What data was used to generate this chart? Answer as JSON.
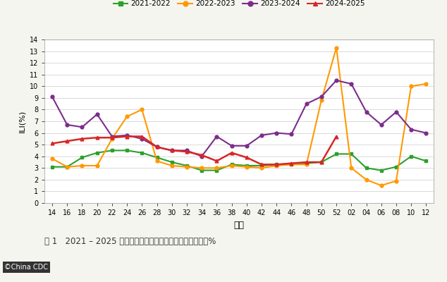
{
  "x_labels": [
    "14",
    "16",
    "18",
    "20",
    "22",
    "24",
    "26",
    "28",
    "30",
    "32",
    "34",
    "36",
    "38",
    "40",
    "42",
    "44",
    "46",
    "48",
    "50",
    "52",
    "02",
    "04",
    "06",
    "08",
    "10",
    "12"
  ],
  "series": {
    "2021-2022": {
      "color": "#2ca02c",
      "marker": "s",
      "values": [
        3.1,
        3.1,
        3.9,
        4.3,
        4.5,
        4.5,
        4.3,
        3.9,
        3.5,
        3.2,
        2.8,
        2.8,
        3.3,
        3.2,
        3.2,
        3.3,
        3.3,
        3.4,
        3.5,
        4.2,
        4.2,
        3.0,
        2.8,
        3.1,
        4.0,
        3.6
      ]
    },
    "2022-2023": {
      "color": "#ff9900",
      "marker": "o",
      "values": [
        3.8,
        3.1,
        3.2,
        3.2,
        5.5,
        7.4,
        8.0,
        3.6,
        3.2,
        3.1,
        3.0,
        3.0,
        3.2,
        3.1,
        3.0,
        3.2,
        3.3,
        3.3,
        8.8,
        13.3,
        3.0,
        2.0,
        1.5,
        1.9,
        10.0,
        10.2
      ]
    },
    "2023-2024": {
      "color": "#7b2d8b",
      "marker": "o",
      "values": [
        9.1,
        6.7,
        6.5,
        7.6,
        5.7,
        5.8,
        5.5,
        4.8,
        4.5,
        4.5,
        4.0,
        5.7,
        4.9,
        4.9,
        5.8,
        6.0,
        5.9,
        8.5,
        9.1,
        10.5,
        10.2,
        7.8,
        6.7,
        7.8,
        6.3,
        6.0
      ]
    },
    "2024-2025": {
      "color": "#d62728",
      "marker": "^",
      "values": [
        5.1,
        5.3,
        5.5,
        5.6,
        5.6,
        5.7,
        5.7,
        4.8,
        4.5,
        4.4,
        4.1,
        3.6,
        4.3,
        3.9,
        3.3,
        3.3,
        3.4,
        3.5,
        3.5,
        5.7,
        null,
        null,
        null,
        null,
        null,
        null
      ]
    }
  },
  "ylabel": "ILI(%)",
  "xlabel": "周次",
  "ylim": [
    0,
    14
  ],
  "yticks": [
    0,
    1,
    2,
    3,
    4,
    5,
    6,
    7,
    8,
    9,
    10,
    11,
    12,
    13,
    14
  ],
  "title_text": "图 1   2021 – 2025 年度南方省份哨点医院报告的流感样病例%",
  "copyright_text": "©China CDC",
  "bg_color": "#f5f5f0",
  "plot_bg_color": "#ffffff"
}
